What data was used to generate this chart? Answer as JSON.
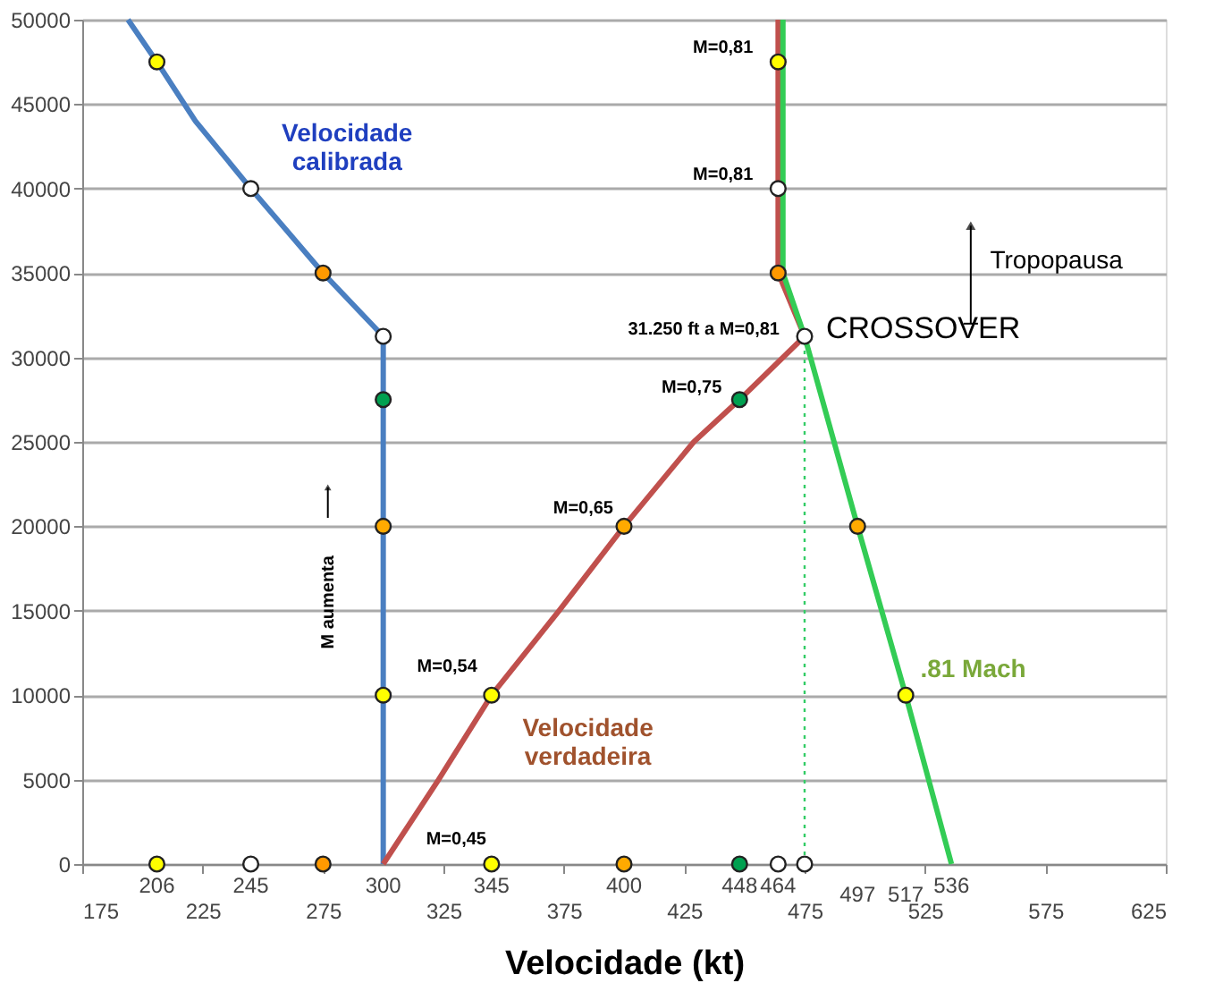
{
  "chart_data": {
    "type": "line",
    "xlabel": "Velocidade (kt)",
    "xlim": [
      175,
      625
    ],
    "xticks": [
      175,
      225,
      275,
      325,
      375,
      425,
      475,
      525,
      575,
      625
    ],
    "ylim": [
      0,
      50000
    ],
    "yticks": [
      0,
      5000,
      10000,
      15000,
      20000,
      25000,
      30000,
      35000,
      40000,
      45000,
      50000
    ],
    "grid": "y",
    "line_style": "solid",
    "series": [
      {
        "name": "Velocidade\ncalibrada",
        "color": "#4a7fc1",
        "x": [
          194,
          206,
          222,
          245,
          275,
          300,
          300
        ],
        "values": [
          50000,
          47500,
          44000,
          40000,
          35000,
          31250,
          0
        ]
      },
      {
        "name": "Velocidade\nverdadeira",
        "color": "#c0504d",
        "x": [
          464,
          464,
          475,
          448,
          429,
          400,
          373,
          345,
          323,
          300
        ],
        "values": [
          50000,
          35000,
          31250,
          27500,
          25000,
          20000,
          15000,
          10000,
          5000,
          0
        ]
      },
      {
        "name": ".81 Mach",
        "color": "#33cc55",
        "x": [
          466,
          466,
          475,
          497,
          517,
          536
        ],
        "values": [
          50000,
          35000,
          31250,
          20000,
          10000,
          0
        ]
      },
      {
        "color": "#33cc66",
        "line_style": "dotted",
        "x": [
          475,
          475
        ],
        "values": [
          0,
          31250
        ]
      },
      {
        "type": "scatter",
        "marker": "circle",
        "x": [
          206,
          245,
          275,
          300,
          300,
          300,
          300,
          464,
          464,
          464,
          475,
          448,
          400,
          345,
          497,
          517,
          206,
          245,
          275,
          345,
          400,
          448,
          464,
          475
        ],
        "values": [
          47500,
          40000,
          35000,
          31250,
          27500,
          20000,
          10000,
          47500,
          40000,
          35000,
          31250,
          27500,
          20000,
          10000,
          20000,
          10000,
          0,
          0,
          0,
          0,
          0,
          0,
          0,
          0
        ],
        "colors": [
          "#ffff00",
          "#ffffff",
          "#ff9900",
          "#ffffff",
          "#00a050",
          "#ffaa00",
          "#ffff00",
          "#ffff00",
          "#ffffff",
          "#ff9900",
          "#ffffff",
          "#00a050",
          "#ffaa00",
          "#ffff00",
          "#ffaa00",
          "#ffff00",
          "#ffff00",
          "#ffffff",
          "#ff9900",
          "#ffff00",
          "#ffaa00",
          "#00a050",
          "#ffffff",
          "#ffffff"
        ]
      }
    ],
    "annotations": [
      {
        "text": "M=0,81",
        "x": 464,
        "y": 47500
      },
      {
        "text": "M=0,81",
        "x": 464,
        "y": 40000
      },
      {
        "text": "31.250 ft  a  M=0,81",
        "x": 475,
        "y": 31250
      },
      {
        "text": "CROSSOVER",
        "x": 475,
        "y": 31250
      },
      {
        "text": "M=0,75",
        "x": 448,
        "y": 27500
      },
      {
        "text": "M=0,65",
        "x": 400,
        "y": 20000
      },
      {
        "text": "M=0,54",
        "x": 345,
        "y": 10000
      },
      {
        "text": "M=0,45",
        "x": 300,
        "y": 0
      },
      "Tropopausa",
      "M aumenta",
      {
        "text": "206",
        "x": 206,
        "y": 0
      },
      {
        "text": "245",
        "x": 245,
        "y": 0
      },
      {
        "text": "300",
        "x": 300,
        "y": 0
      },
      {
        "text": "345",
        "x": 345,
        "y": 0
      },
      {
        "text": "400",
        "x": 400,
        "y": 0
      },
      {
        "text": "448",
        "x": 448,
        "y": 0
      },
      {
        "text": "464",
        "x": 464,
        "y": 0
      },
      "497",
      "517",
      {
        "text": "536",
        "x": 536,
        "y": 0
      }
    ]
  }
}
